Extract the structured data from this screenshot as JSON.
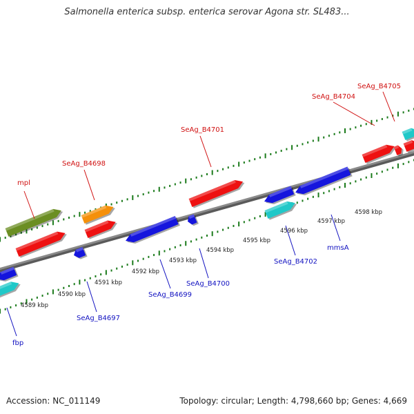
{
  "header": {
    "title": "Salmonella enterica subsp. enterica serovar Agona str. SL483..."
  },
  "footer": {
    "accession": "Accession: NC_011149",
    "summary": "Topology: circular; Length: 4,798,660 bp; Genes: 4,669"
  },
  "colors": {
    "backbone": "#8a8a8a",
    "tick": "#1a7a1a",
    "forward_label": "#d01010",
    "reverse_label": "#1010c0",
    "red": "#ee1111",
    "orange": "#f5900a",
    "olive": "#6b8e23",
    "blue": "#1515dd",
    "cyan": "#20c8c8"
  },
  "scale": {
    "ticks": [
      {
        "label": "4589 kbp"
      },
      {
        "label": "4590 kbp"
      },
      {
        "label": "4591 kbp"
      },
      {
        "label": "4592 kbp"
      },
      {
        "label": "4593 kbp"
      },
      {
        "label": "4594 kbp"
      },
      {
        "label": "4595 kbp"
      },
      {
        "label": "4596 kbp"
      },
      {
        "label": "4597 kbp"
      },
      {
        "label": "4598 kbp"
      }
    ]
  },
  "genes": {
    "forward": [
      {
        "id": "mpl",
        "label": "mpl",
        "color": "olive"
      },
      {
        "id": "b4698",
        "label": "SeAg_B4698",
        "color": "orange"
      },
      {
        "id": "b4701",
        "label": "SeAg_B4701",
        "color": "red"
      },
      {
        "id": "b4704",
        "label": "SeAg_B4704",
        "color": "red"
      },
      {
        "id": "b4705",
        "label": "SeAg_B4705",
        "color": "red"
      }
    ],
    "reverse": [
      {
        "id": "fbp",
        "label": "fbp",
        "color": "blue"
      },
      {
        "id": "b4697",
        "label": "SeAg_B4697",
        "color": "blue"
      },
      {
        "id": "b4699",
        "label": "SeAg_B4699",
        "color": "blue"
      },
      {
        "id": "b4700",
        "label": "SeAg_B4700",
        "color": "blue"
      },
      {
        "id": "b4702",
        "label": "SeAg_B4702",
        "color": "cyan"
      },
      {
        "id": "mmsa",
        "label": "mmsA",
        "color": "blue"
      }
    ]
  }
}
